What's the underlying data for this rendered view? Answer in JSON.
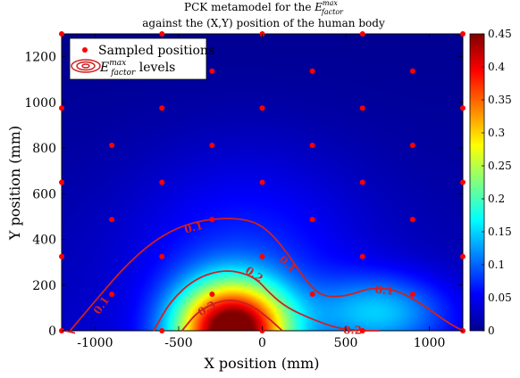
{
  "chart_data": {
    "type": "heatmap",
    "title_line1_prefix": "PCK metamodel for the ",
    "title_symbol": "E",
    "title_symbol_sup": "max",
    "title_symbol_sub": "factor",
    "title_line2": "against the (X,Y) position of the human body",
    "xlabel": "X position (mm)",
    "ylabel": "Y position (mm)",
    "xlim": [
      -1200,
      1200
    ],
    "ylim": [
      0,
      1300
    ],
    "xticks": [
      -1000,
      -500,
      0,
      500,
      1000
    ],
    "yticks": [
      0,
      200,
      400,
      600,
      800,
      1000,
      1200
    ],
    "colorbar": {
      "min": 0,
      "max": 0.45,
      "ticks": [
        0,
        0.05,
        0.1,
        0.15,
        0.2,
        0.25,
        0.3,
        0.35,
        0.4,
        0.45
      ],
      "colormap": "jet"
    },
    "grid": false,
    "legend_position": "top-left",
    "legend": [
      {
        "label": "Sampled positions",
        "marker": "dot",
        "color": "#ff0000"
      },
      {
        "label_symbol": "E",
        "label_sup": "max",
        "label_sub": "factor",
        "label_suffix": " levels",
        "marker": "contour-rings",
        "color": "#d02020"
      }
    ],
    "sampled_positions": [
      {
        "x": -1200,
        "y": 0
      },
      {
        "x": -600,
        "y": 0
      },
      {
        "x": 0,
        "y": 0
      },
      {
        "x": 600,
        "y": 0
      },
      {
        "x": 1200,
        "y": 0
      },
      {
        "x": -900,
        "y": 160
      },
      {
        "x": -300,
        "y": 160
      },
      {
        "x": 300,
        "y": 160
      },
      {
        "x": 900,
        "y": 160
      },
      {
        "x": -1200,
        "y": 325
      },
      {
        "x": -600,
        "y": 325
      },
      {
        "x": 0,
        "y": 325
      },
      {
        "x": 600,
        "y": 325
      },
      {
        "x": 1200,
        "y": 325
      },
      {
        "x": -900,
        "y": 487
      },
      {
        "x": -300,
        "y": 487
      },
      {
        "x": 300,
        "y": 487
      },
      {
        "x": 900,
        "y": 487
      },
      {
        "x": -1200,
        "y": 650
      },
      {
        "x": -600,
        "y": 650
      },
      {
        "x": 0,
        "y": 650
      },
      {
        "x": 600,
        "y": 650
      },
      {
        "x": 1200,
        "y": 650
      },
      {
        "x": -900,
        "y": 812
      },
      {
        "x": -300,
        "y": 812
      },
      {
        "x": 300,
        "y": 812
      },
      {
        "x": 900,
        "y": 812
      },
      {
        "x": -1200,
        "y": 975
      },
      {
        "x": -600,
        "y": 975
      },
      {
        "x": 0,
        "y": 975
      },
      {
        "x": 600,
        "y": 975
      },
      {
        "x": 1200,
        "y": 975
      },
      {
        "x": -900,
        "y": 1137
      },
      {
        "x": -300,
        "y": 1137
      },
      {
        "x": 300,
        "y": 1137
      },
      {
        "x": 900,
        "y": 1137
      },
      {
        "x": -1200,
        "y": 1300
      },
      {
        "x": -600,
        "y": 1300
      },
      {
        "x": 0,
        "y": 1300
      },
      {
        "x": 600,
        "y": 1300
      },
      {
        "x": 1200,
        "y": 1300
      }
    ],
    "contours": [
      {
        "level": 0.1,
        "label": "0.1",
        "points": [
          [
            -1150,
            0
          ],
          [
            -1000,
            130
          ],
          [
            -800,
            300
          ],
          [
            -600,
            420
          ],
          [
            -400,
            480
          ],
          [
            -200,
            495
          ],
          [
            -50,
            480
          ],
          [
            50,
            430
          ],
          [
            150,
            340
          ],
          [
            250,
            230
          ],
          [
            350,
            150
          ],
          [
            500,
            150
          ],
          [
            650,
            190
          ],
          [
            800,
            180
          ],
          [
            950,
            120
          ],
          [
            1100,
            40
          ],
          [
            1200,
            0
          ]
        ]
      },
      {
        "level": 0.1,
        "label": "0.1",
        "points": [
          [
            -1120,
            -10
          ],
          [
            -1180,
            0
          ]
        ]
      },
      {
        "level": 0.2,
        "label": "0.2",
        "points": [
          [
            -650,
            0
          ],
          [
            -550,
            130
          ],
          [
            -400,
            230
          ],
          [
            -220,
            270
          ],
          [
            -50,
            240
          ],
          [
            50,
            160
          ],
          [
            150,
            100
          ],
          [
            300,
            50
          ],
          [
            450,
            10
          ],
          [
            600,
            0
          ],
          [
            700,
            0
          ]
        ]
      },
      {
        "level": 0.3,
        "label": "0.3",
        "points": [
          [
            -480,
            0
          ],
          [
            -380,
            90
          ],
          [
            -220,
            140
          ],
          [
            -80,
            120
          ],
          [
            30,
            60
          ],
          [
            120,
            0
          ]
        ]
      }
    ],
    "contour_labels": [
      {
        "text": "0.1",
        "x": -410,
        "y": 450,
        "angle": -15
      },
      {
        "text": "0.1",
        "x": 150,
        "y": 290,
        "angle": 45
      },
      {
        "text": "0.1",
        "x": 730,
        "y": 175,
        "angle": 5
      },
      {
        "text": "0.1",
        "x": -960,
        "y": 110,
        "angle": -55
      },
      {
        "text": "0.2",
        "x": -50,
        "y": 245,
        "angle": 35
      },
      {
        "text": "0.2",
        "x": 540,
        "y": 0,
        "angle": 0
      },
      {
        "text": "0.3",
        "x": -330,
        "y": 95,
        "angle": -30
      }
    ],
    "peak": {
      "x": -180,
      "y": 0,
      "value": 0.45
    }
  }
}
